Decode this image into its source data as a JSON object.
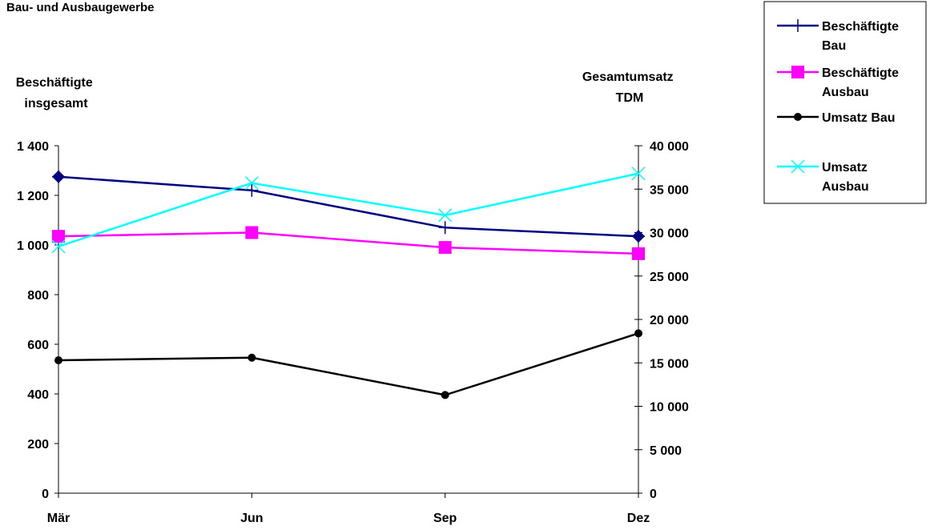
{
  "chart_data": {
    "type": "line",
    "title": "Bau- und Ausbaugewerbe",
    "categories": [
      "Mär",
      "Jun",
      "Sep",
      "Dez"
    ],
    "y_left": {
      "label_lines": [
        "Beschäftigte",
        "insgesamt"
      ],
      "min": 0,
      "max": 1400,
      "ticks": [
        0,
        200,
        400,
        600,
        800,
        1000,
        1200,
        1400
      ],
      "tick_labels": [
        "0",
        "200",
        "400",
        "600",
        "800",
        "1 000",
        "1 200",
        "1 400"
      ]
    },
    "y_right": {
      "label_lines": [
        "Gesamtumsatz",
        "TDM"
      ],
      "min": 0,
      "max": 40000,
      "ticks": [
        0,
        5000,
        10000,
        15000,
        20000,
        25000,
        30000,
        35000,
        40000
      ],
      "tick_labels": [
        "0",
        "5 000",
        "10 000",
        "15 000",
        "20 000",
        "25 000",
        "30 000",
        "35 000",
        "40 000"
      ]
    },
    "grid": false,
    "legend_position": "top-right",
    "series": [
      {
        "name_lines": [
          "Beschäftigte",
          "Bau"
        ],
        "axis": "left",
        "color": "#000080",
        "marker": "plus",
        "values": [
          1275,
          1220,
          1070,
          1035
        ]
      },
      {
        "name_lines": [
          "Beschäftigte",
          "Ausbau"
        ],
        "axis": "left",
        "color": "#ff00ff",
        "marker": "square",
        "values": [
          1035,
          1050,
          990,
          965
        ]
      },
      {
        "name_lines": [
          "Umsatz Bau"
        ],
        "axis": "right",
        "color": "#000000",
        "marker": "circle",
        "values": [
          15300,
          15600,
          11300,
          18400
        ]
      },
      {
        "name_lines": [
          "Umsatz",
          "Ausbau"
        ],
        "axis": "right",
        "color": "#00ffff",
        "marker": "x",
        "values": [
          28400,
          35700,
          32000,
          36800
        ]
      }
    ],
    "extra_markers": [
      {
        "category_index": 0,
        "value": 1275,
        "axis": "left",
        "color": "#000080",
        "marker": "diamond"
      },
      {
        "category_index": 3,
        "value": 1035,
        "axis": "left",
        "color": "#000080",
        "marker": "diamond"
      }
    ]
  }
}
